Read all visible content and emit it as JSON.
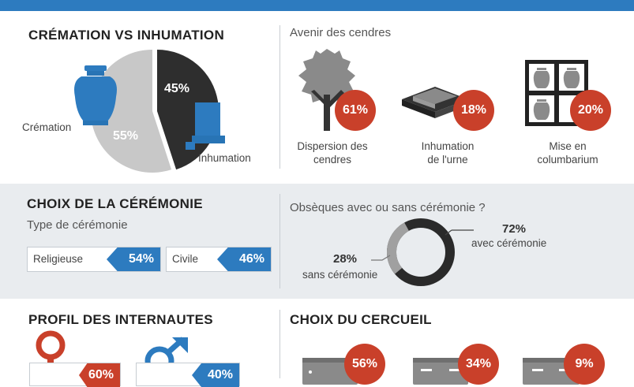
{
  "cremation_section": {
    "title": "CRÉMATION VS INHUMATION",
    "cremation_label": "Crémation",
    "cremation_pct": "55%",
    "inhumation_label": "Inhumation",
    "inhumation_pct": "45%",
    "cremation_value": 55,
    "inhumation_value": 45,
    "colors": {
      "cremation": "#c8c8c8",
      "inhumation": "#2e2e2e",
      "accent": "#2d7bbf"
    }
  },
  "ashes_section": {
    "title": "Avenir des cendres",
    "items": [
      {
        "icon": "tree-icon",
        "pct": "61%",
        "value": 61,
        "label_line1": "Dispersion des",
        "label_line2": "cendres"
      },
      {
        "icon": "urn-burial-icon",
        "pct": "18%",
        "value": 18,
        "label_line1": "Inhumation",
        "label_line2": "de l'urne"
      },
      {
        "icon": "columbarium-icon",
        "pct": "20%",
        "value": 20,
        "label_line1": "Mise en",
        "label_line2": "columbarium"
      }
    ],
    "badge_color": "#c9402a"
  },
  "ceremony_section": {
    "title": "CHOIX DE LA CÉRÉMONIE",
    "subtitle": "Type de cérémonie",
    "types": [
      {
        "label": "Religieuse",
        "pct": "54%",
        "value": 54
      },
      {
        "label": "Civile",
        "pct": "46%",
        "value": 46
      }
    ]
  },
  "funeral_section": {
    "title": "Obsèques avec ou sans cérémonie ?",
    "with_pct": "72%",
    "with_label": "avec cérémonie",
    "with_value": 72,
    "without_pct": "28%",
    "without_label": "sans cérémonie",
    "without_value": 28,
    "colors": {
      "with": "#2a2a2a",
      "without": "#a0a0a0"
    }
  },
  "profile_section": {
    "title": "PROFIL DES INTERNAUTES",
    "female_pct": "60%",
    "female_value": 60,
    "male_pct": "40%",
    "male_value": 40,
    "colors": {
      "female": "#c9402a",
      "male": "#2d7bbf"
    }
  },
  "coffin_section": {
    "title": "CHOIX DU CERCUEIL",
    "items": [
      {
        "icon": "coffin-icon",
        "pct": "56%",
        "value": 56
      },
      {
        "icon": "coffin-icon",
        "pct": "34%",
        "value": 34
      },
      {
        "icon": "coffin-icon",
        "pct": "9%",
        "value": 9
      }
    ]
  }
}
